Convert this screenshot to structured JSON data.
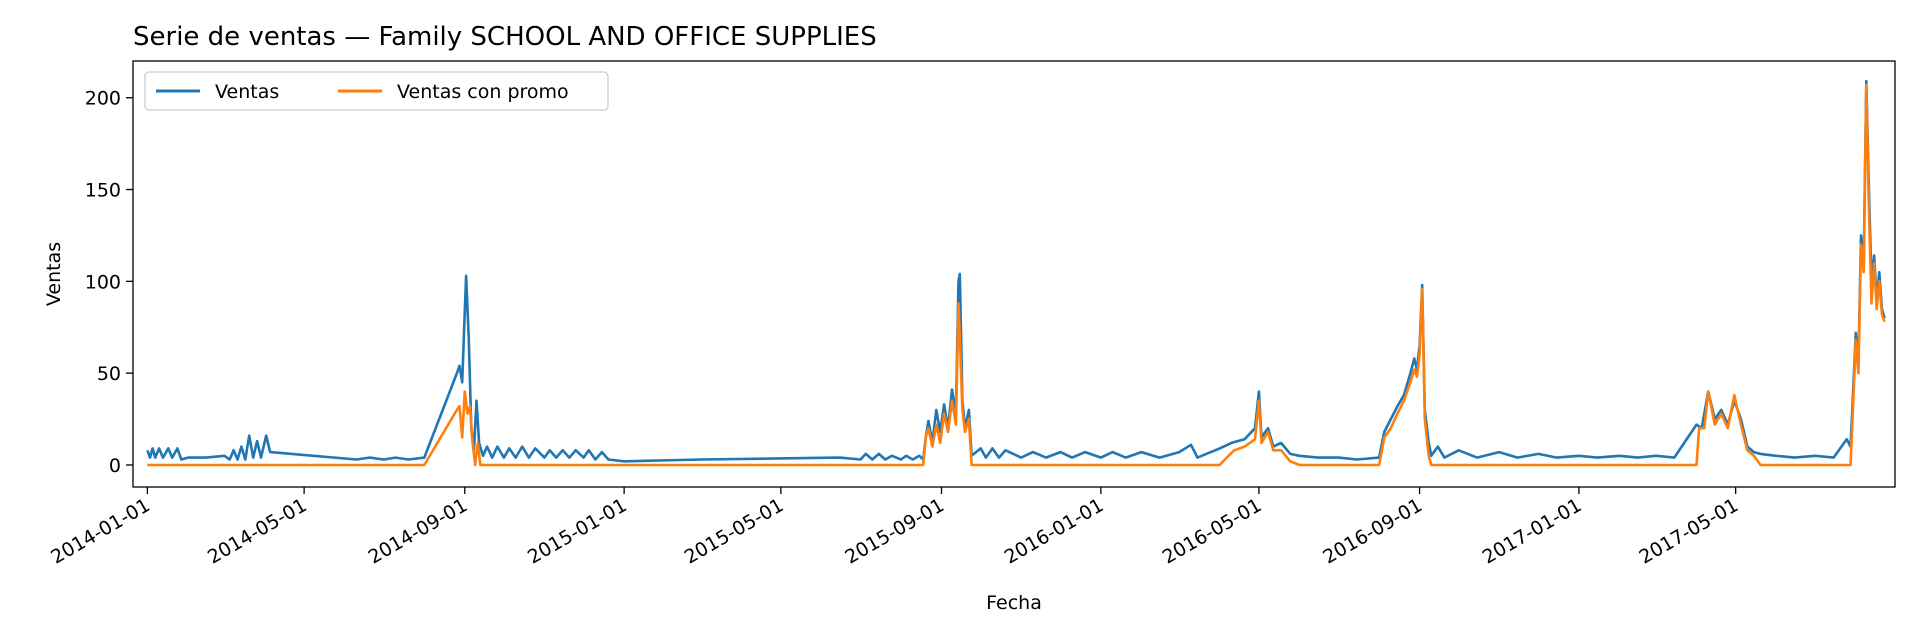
{
  "chart_data": {
    "type": "line",
    "title": "Serie de ventas — Family SCHOOL AND OFFICE SUPPLIES",
    "xlabel": "Fecha",
    "ylabel": "Ventas",
    "xlim": [
      "2013-12-21",
      "2017-08-31"
    ],
    "ylim": [
      -12,
      220
    ],
    "grid": false,
    "legend_placement": "top-left",
    "x_ticks": [
      "2014-01-01",
      "2014-05-01",
      "2014-09-01",
      "2015-01-01",
      "2015-05-01",
      "2015-09-01",
      "2016-01-01",
      "2016-05-01",
      "2016-09-01",
      "2017-01-01",
      "2017-05-01"
    ],
    "y_ticks": [
      0,
      50,
      100,
      150,
      200
    ],
    "series": [
      {
        "name": "Ventas",
        "color": "#1f77b4",
        "points": [
          [
            "2014-01-01",
            8
          ],
          [
            "2014-01-03",
            4
          ],
          [
            "2014-01-05",
            9
          ],
          [
            "2014-01-07",
            4
          ],
          [
            "2014-01-10",
            9
          ],
          [
            "2014-01-13",
            4
          ],
          [
            "2014-01-17",
            9
          ],
          [
            "2014-01-20",
            4
          ],
          [
            "2014-01-24",
            9
          ],
          [
            "2014-01-27",
            3
          ],
          [
            "2014-02-01",
            4
          ],
          [
            "2014-02-15",
            4
          ],
          [
            "2014-03-01",
            5
          ],
          [
            "2014-03-05",
            3
          ],
          [
            "2014-03-08",
            8
          ],
          [
            "2014-03-11",
            3
          ],
          [
            "2014-03-14",
            10
          ],
          [
            "2014-03-17",
            3
          ],
          [
            "2014-03-20",
            16
          ],
          [
            "2014-03-23",
            4
          ],
          [
            "2014-03-26",
            13
          ],
          [
            "2014-03-29",
            4
          ],
          [
            "2014-04-02",
            16
          ],
          [
            "2014-04-05",
            7
          ],
          [
            "2014-06-10",
            3
          ],
          [
            "2014-06-20",
            4
          ],
          [
            "2014-07-01",
            3
          ],
          [
            "2014-07-10",
            4
          ],
          [
            "2014-07-20",
            3
          ],
          [
            "2014-08-01",
            4
          ],
          [
            "2014-08-26",
            50
          ],
          [
            "2014-08-28",
            54
          ],
          [
            "2014-08-30",
            45
          ],
          [
            "2014-09-02",
            103
          ],
          [
            "2014-09-04",
            70
          ],
          [
            "2014-09-06",
            20
          ],
          [
            "2014-09-08",
            8
          ],
          [
            "2014-09-10",
            35
          ],
          [
            "2014-09-12",
            12
          ],
          [
            "2014-09-15",
            5
          ],
          [
            "2014-09-18",
            10
          ],
          [
            "2014-09-22",
            4
          ],
          [
            "2014-09-26",
            10
          ],
          [
            "2014-10-01",
            4
          ],
          [
            "2014-10-05",
            9
          ],
          [
            "2014-10-10",
            4
          ],
          [
            "2014-10-15",
            10
          ],
          [
            "2014-10-20",
            4
          ],
          [
            "2014-10-25",
            9
          ],
          [
            "2014-11-01",
            4
          ],
          [
            "2014-11-05",
            8
          ],
          [
            "2014-11-10",
            4
          ],
          [
            "2014-11-15",
            8
          ],
          [
            "2014-11-20",
            4
          ],
          [
            "2014-11-25",
            8
          ],
          [
            "2014-12-01",
            4
          ],
          [
            "2014-12-05",
            8
          ],
          [
            "2014-12-10",
            3
          ],
          [
            "2014-12-15",
            7
          ],
          [
            "2014-12-20",
            3
          ],
          [
            "2015-01-01",
            2
          ],
          [
            "2015-03-01",
            3
          ],
          [
            "2015-06-15",
            4
          ],
          [
            "2015-07-01",
            3
          ],
          [
            "2015-07-05",
            6
          ],
          [
            "2015-07-10",
            3
          ],
          [
            "2015-07-15",
            6
          ],
          [
            "2015-07-20",
            3
          ],
          [
            "2015-07-25",
            5
          ],
          [
            "2015-08-01",
            3
          ],
          [
            "2015-08-05",
            5
          ],
          [
            "2015-08-10",
            3
          ],
          [
            "2015-08-15",
            5
          ],
          [
            "2015-08-18",
            3
          ],
          [
            "2015-08-20",
            15
          ],
          [
            "2015-08-22",
            24
          ],
          [
            "2015-08-25",
            12
          ],
          [
            "2015-08-28",
            30
          ],
          [
            "2015-08-31",
            18
          ],
          [
            "2015-09-03",
            33
          ],
          [
            "2015-09-06",
            20
          ],
          [
            "2015-09-09",
            41
          ],
          [
            "2015-09-12",
            28
          ],
          [
            "2015-09-14",
            100
          ],
          [
            "2015-09-15",
            104
          ],
          [
            "2015-09-17",
            35
          ],
          [
            "2015-09-19",
            20
          ],
          [
            "2015-09-22",
            30
          ],
          [
            "2015-09-24",
            5
          ],
          [
            "2015-10-01",
            9
          ],
          [
            "2015-10-05",
            4
          ],
          [
            "2015-10-10",
            9
          ],
          [
            "2015-10-15",
            4
          ],
          [
            "2015-10-20",
            8
          ],
          [
            "2015-11-01",
            4
          ],
          [
            "2015-11-10",
            7
          ],
          [
            "2015-11-20",
            4
          ],
          [
            "2015-12-01",
            7
          ],
          [
            "2015-12-10",
            4
          ],
          [
            "2015-12-20",
            7
          ],
          [
            "2016-01-01",
            4
          ],
          [
            "2016-01-10",
            7
          ],
          [
            "2016-01-20",
            4
          ],
          [
            "2016-02-01",
            7
          ],
          [
            "2016-02-15",
            4
          ],
          [
            "2016-03-01",
            7
          ],
          [
            "2016-03-10",
            11
          ],
          [
            "2016-03-15",
            4
          ],
          [
            "2016-04-01",
            9
          ],
          [
            "2016-04-10",
            12
          ],
          [
            "2016-04-20",
            14
          ],
          [
            "2016-04-28",
            20
          ],
          [
            "2016-05-01",
            40
          ],
          [
            "2016-05-03",
            15
          ],
          [
            "2016-05-08",
            20
          ],
          [
            "2016-05-12",
            10
          ],
          [
            "2016-05-18",
            12
          ],
          [
            "2016-05-25",
            6
          ],
          [
            "2016-06-01",
            5
          ],
          [
            "2016-06-15",
            4
          ],
          [
            "2016-07-01",
            4
          ],
          [
            "2016-07-15",
            3
          ],
          [
            "2016-08-01",
            4
          ],
          [
            "2016-08-05",
            18
          ],
          [
            "2016-08-10",
            25
          ],
          [
            "2016-08-15",
            32
          ],
          [
            "2016-08-20",
            38
          ],
          [
            "2016-08-25",
            50
          ],
          [
            "2016-08-28",
            58
          ],
          [
            "2016-08-30",
            52
          ],
          [
            "2016-09-01",
            65
          ],
          [
            "2016-09-03",
            98
          ],
          [
            "2016-09-05",
            30
          ],
          [
            "2016-09-08",
            12
          ],
          [
            "2016-09-10",
            5
          ],
          [
            "2016-09-15",
            10
          ],
          [
            "2016-09-20",
            4
          ],
          [
            "2016-10-01",
            8
          ],
          [
            "2016-10-15",
            4
          ],
          [
            "2016-11-01",
            7
          ],
          [
            "2016-11-15",
            4
          ],
          [
            "2016-12-01",
            6
          ],
          [
            "2016-12-15",
            4
          ],
          [
            "2017-01-01",
            5
          ],
          [
            "2017-01-15",
            4
          ],
          [
            "2017-02-01",
            5
          ],
          [
            "2017-02-15",
            4
          ],
          [
            "2017-03-01",
            5
          ],
          [
            "2017-03-15",
            4
          ],
          [
            "2017-04-01",
            22
          ],
          [
            "2017-04-05",
            20
          ],
          [
            "2017-04-10",
            40
          ],
          [
            "2017-04-15",
            25
          ],
          [
            "2017-04-20",
            30
          ],
          [
            "2017-04-25",
            22
          ],
          [
            "2017-04-30",
            35
          ],
          [
            "2017-05-05",
            25
          ],
          [
            "2017-05-10",
            10
          ],
          [
            "2017-05-15",
            7
          ],
          [
            "2017-05-20",
            6
          ],
          [
            "2017-06-01",
            5
          ],
          [
            "2017-06-15",
            4
          ],
          [
            "2017-07-01",
            5
          ],
          [
            "2017-07-15",
            4
          ],
          [
            "2017-07-25",
            14
          ],
          [
            "2017-07-28",
            10
          ],
          [
            "2017-08-01",
            72
          ],
          [
            "2017-08-03",
            55
          ],
          [
            "2017-08-05",
            125
          ],
          [
            "2017-08-07",
            110
          ],
          [
            "2017-08-09",
            209
          ],
          [
            "2017-08-11",
            150
          ],
          [
            "2017-08-13",
            100
          ],
          [
            "2017-08-15",
            114
          ],
          [
            "2017-08-17",
            90
          ],
          [
            "2017-08-19",
            105
          ],
          [
            "2017-08-21",
            85
          ],
          [
            "2017-08-23",
            80
          ]
        ]
      },
      {
        "name": "Ventas con promo",
        "color": "#ff7f0e",
        "points": [
          [
            "2014-01-01",
            0
          ],
          [
            "2014-08-01",
            0
          ],
          [
            "2014-08-26",
            30
          ],
          [
            "2014-08-28",
            32
          ],
          [
            "2014-08-30",
            15
          ],
          [
            "2014-09-01",
            40
          ],
          [
            "2014-09-03",
            28
          ],
          [
            "2014-09-05",
            32
          ],
          [
            "2014-09-07",
            12
          ],
          [
            "2014-09-09",
            0
          ],
          [
            "2014-09-11",
            12
          ],
          [
            "2014-09-13",
            0
          ],
          [
            "2015-08-18",
            0
          ],
          [
            "2015-08-20",
            15
          ],
          [
            "2015-08-22",
            20
          ],
          [
            "2015-08-25",
            10
          ],
          [
            "2015-08-28",
            22
          ],
          [
            "2015-08-31",
            12
          ],
          [
            "2015-09-03",
            28
          ],
          [
            "2015-09-06",
            18
          ],
          [
            "2015-09-09",
            35
          ],
          [
            "2015-09-12",
            22
          ],
          [
            "2015-09-14",
            88
          ],
          [
            "2015-09-15",
            70
          ],
          [
            "2015-09-17",
            30
          ],
          [
            "2015-09-19",
            18
          ],
          [
            "2015-09-22",
            25
          ],
          [
            "2015-09-24",
            0
          ],
          [
            "2016-04-01",
            0
          ],
          [
            "2016-04-05",
            3
          ],
          [
            "2016-04-12",
            8
          ],
          [
            "2016-04-20",
            10
          ],
          [
            "2016-04-28",
            14
          ],
          [
            "2016-05-01",
            35
          ],
          [
            "2016-05-03",
            12
          ],
          [
            "2016-05-08",
            18
          ],
          [
            "2016-05-12",
            8
          ],
          [
            "2016-05-18",
            8
          ],
          [
            "2016-05-25",
            2
          ],
          [
            "2016-06-01",
            0
          ],
          [
            "2016-08-01",
            0
          ],
          [
            "2016-08-05",
            15
          ],
          [
            "2016-08-10",
            20
          ],
          [
            "2016-08-15",
            28
          ],
          [
            "2016-08-20",
            35
          ],
          [
            "2016-08-25",
            45
          ],
          [
            "2016-08-28",
            52
          ],
          [
            "2016-08-30",
            48
          ],
          [
            "2016-09-01",
            60
          ],
          [
            "2016-09-03",
            96
          ],
          [
            "2016-09-05",
            25
          ],
          [
            "2016-09-08",
            5
          ],
          [
            "2016-09-10",
            0
          ],
          [
            "2017-04-01",
            0
          ],
          [
            "2017-04-03",
            20
          ],
          [
            "2017-04-07",
            20
          ],
          [
            "2017-04-10",
            40
          ],
          [
            "2017-04-15",
            22
          ],
          [
            "2017-04-20",
            28
          ],
          [
            "2017-04-25",
            20
          ],
          [
            "2017-04-30",
            38
          ],
          [
            "2017-05-05",
            22
          ],
          [
            "2017-05-10",
            8
          ],
          [
            "2017-05-15",
            5
          ],
          [
            "2017-05-20",
            0
          ],
          [
            "2017-07-28",
            0
          ],
          [
            "2017-08-01",
            68
          ],
          [
            "2017-08-03",
            50
          ],
          [
            "2017-08-05",
            120
          ],
          [
            "2017-08-07",
            105
          ],
          [
            "2017-08-09",
            207
          ],
          [
            "2017-08-11",
            140
          ],
          [
            "2017-08-13",
            88
          ],
          [
            "2017-08-15",
            110
          ],
          [
            "2017-08-17",
            85
          ],
          [
            "2017-08-19",
            100
          ],
          [
            "2017-08-21",
            82
          ],
          [
            "2017-08-23",
            78
          ]
        ]
      }
    ]
  }
}
